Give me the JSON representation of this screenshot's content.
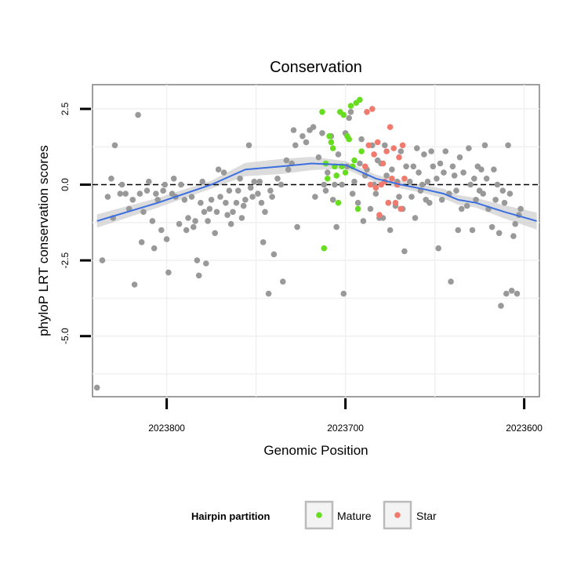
{
  "chart_data": {
    "type": "scatter",
    "title": "Conservation",
    "xlabel": "Genomic Position",
    "ylabel": "phyloP LRT conservation scores",
    "x_reversed": true,
    "xlim": [
      2023841.5,
      2023591.5
    ],
    "ylim": [
      -7.0,
      3.3
    ],
    "x_ticks": [
      2023800,
      2023700,
      2023600
    ],
    "x_tick_labels": [
      "2023800",
      "2023700",
      "2023600"
    ],
    "y_ticks": [
      2.5,
      0.0,
      -2.5,
      -5.0
    ],
    "y_tick_labels": [
      "2.5",
      "0.0",
      "-2.5",
      "-5.0"
    ],
    "grid": true,
    "reference_line": {
      "y": 0,
      "style": "dashed"
    },
    "legend": {
      "title": "Hairpin partition",
      "position": "bottom",
      "entries": [
        {
          "label": "Mature",
          "color": "#66dd1e"
        },
        {
          "label": "Star",
          "color": "#f07a6e"
        }
      ]
    },
    "colors": {
      "other": "#999999",
      "trend": "#3b6fe0",
      "band": "#d0d0d0"
    },
    "series": [
      {
        "name": "",
        "group": "other",
        "points": [
          [
            2023839,
            -6.7
          ],
          [
            2023836,
            -2.5
          ],
          [
            2023833,
            -0.4
          ],
          [
            2023831,
            0.2
          ],
          [
            2023830,
            -1.1
          ],
          [
            2023829,
            1.3
          ],
          [
            2023826,
            -0.3
          ],
          [
            2023825,
            0.0
          ],
          [
            2023823,
            -0.3
          ],
          [
            2023821,
            -0.8
          ],
          [
            2023819,
            -0.5
          ],
          [
            2023818,
            -3.3
          ],
          [
            2023816,
            2.3
          ],
          [
            2023815,
            -0.3
          ],
          [
            2023814,
            -1.9
          ],
          [
            2023813,
            -0.9
          ],
          [
            2023811,
            -0.2
          ],
          [
            2023810,
            0.1
          ],
          [
            2023808,
            -1.2
          ],
          [
            2023807,
            -2.1
          ],
          [
            2023806,
            -0.3
          ],
          [
            2023805,
            -0.5
          ],
          [
            2023803,
            -1.5
          ],
          [
            2023802,
            -0.2
          ],
          [
            2023801,
            0.0
          ],
          [
            2023800,
            -1.8
          ],
          [
            2023799,
            -2.9
          ],
          [
            2023797,
            -0.3
          ],
          [
            2023796,
            0.2
          ],
          [
            2023795,
            -0.4
          ],
          [
            2023793,
            -1.3
          ],
          [
            2023792,
            0.0
          ],
          [
            2023790,
            -0.5
          ],
          [
            2023789,
            -1.5
          ],
          [
            2023788,
            -1.1
          ],
          [
            2023786,
            -0.4
          ],
          [
            2023785,
            -1.4
          ],
          [
            2023784,
            -1.2
          ],
          [
            2023783,
            -2.5
          ],
          [
            2023782,
            -3.0
          ],
          [
            2023781,
            -0.6
          ],
          [
            2023780,
            0.1
          ],
          [
            2023779,
            -0.9
          ],
          [
            2023778,
            -2.6
          ],
          [
            2023777,
            -1.2
          ],
          [
            2023776,
            -0.8
          ],
          [
            2023775,
            -0.5
          ],
          [
            2023773,
            -1.6
          ],
          [
            2023772,
            -0.9
          ],
          [
            2023771,
            0.5
          ],
          [
            2023770,
            -0.4
          ],
          [
            2023768,
            0.4
          ],
          [
            2023767,
            -0.6
          ],
          [
            2023766,
            -1.0
          ],
          [
            2023765,
            -0.2
          ],
          [
            2023764,
            -1.3
          ],
          [
            2023763,
            -0.9
          ],
          [
            2023761,
            -0.6
          ],
          [
            2023760,
            -0.2
          ],
          [
            2023759,
            0.2
          ],
          [
            2023758,
            -1.1
          ],
          [
            2023757,
            -0.7
          ],
          [
            2023756,
            -0.5
          ],
          [
            2023754,
            1.3
          ],
          [
            2023753,
            -0.1
          ],
          [
            2023752,
            -0.4
          ],
          [
            2023751,
            0.1
          ],
          [
            2023749,
            -0.3
          ],
          [
            2023748,
            0.1
          ],
          [
            2023747,
            -0.6
          ],
          [
            2023746,
            -1.9
          ],
          [
            2023745,
            -0.9
          ],
          [
            2023743,
            -3.6
          ],
          [
            2023742,
            -0.2
          ],
          [
            2023741,
            -0.4
          ],
          [
            2023740,
            -2.3
          ],
          [
            2023738,
            0.2
          ],
          [
            2023736,
            0.0
          ],
          [
            2023735,
            -3.2
          ],
          [
            2023733,
            0.8
          ],
          [
            2023732,
            0.5
          ],
          [
            2023730,
            0.7
          ],
          [
            2023729,
            1.8
          ],
          [
            2023728,
            1.3
          ],
          [
            2023727,
            -1.4
          ],
          [
            2023724,
            1.6
          ],
          [
            2023722,
            1.4
          ],
          [
            2023720,
            1.8
          ],
          [
            2023718,
            1.9
          ],
          [
            2023717,
            -0.4
          ],
          [
            2023715,
            0.9
          ],
          [
            2023713,
            1.7
          ],
          [
            2023712,
            0.0
          ],
          [
            2023711,
            -0.2
          ],
          [
            2023710,
            0.4
          ],
          [
            2023708,
            1.6
          ],
          [
            2023707,
            -0.5
          ],
          [
            2023706,
            0.0
          ],
          [
            2023705,
            -1.4
          ],
          [
            2023704,
            1.0
          ],
          [
            2023702,
            0.0
          ],
          [
            2023701,
            -3.6
          ],
          [
            2023700,
            1.7
          ],
          [
            2023699,
            0.6
          ],
          [
            2023698,
            2.2
          ],
          [
            2023697,
            2.4
          ],
          [
            2023696,
            -0.3
          ],
          [
            2023695,
            0.1
          ],
          [
            2023693,
            -0.6
          ],
          [
            2023692,
            0.7
          ],
          [
            2023691,
            1.5
          ],
          [
            2023690,
            -1.2
          ],
          [
            2023689,
            0.3
          ],
          [
            2023688,
            0.5
          ],
          [
            2023686,
            -0.8
          ],
          [
            2023685,
            1.3
          ],
          [
            2023684,
            0.0
          ],
          [
            2023683,
            -0.3
          ],
          [
            2023682,
            0.8
          ],
          [
            2023681,
            -1.1
          ],
          [
            2023680,
            0.7
          ],
          [
            2023679,
            -1.1
          ],
          [
            2023678,
            1.3
          ],
          [
            2023677,
            0.3
          ],
          [
            2023676,
            -0.6
          ],
          [
            2023675,
            -1.5
          ],
          [
            2023674,
            0.5
          ],
          [
            2023672,
            -0.7
          ],
          [
            2023671,
            0.1
          ],
          [
            2023670,
            -0.4
          ],
          [
            2023669,
            1.1
          ],
          [
            2023668,
            -0.8
          ],
          [
            2023667,
            -2.2
          ],
          [
            2023666,
            0.6
          ],
          [
            2023664,
            0.1
          ],
          [
            2023663,
            -0.4
          ],
          [
            2023662,
            0.6
          ],
          [
            2023661,
            -1.1
          ],
          [
            2023660,
            1.2
          ],
          [
            2023659,
            0.4
          ],
          [
            2023658,
            -0.2
          ],
          [
            2023657,
            0.0
          ],
          [
            2023656,
            1.0
          ],
          [
            2023655,
            -0.5
          ],
          [
            2023654,
            0.1
          ],
          [
            2023653,
            -0.6
          ],
          [
            2023652,
            1.1
          ],
          [
            2023651,
            0.6
          ],
          [
            2023649,
            0.2
          ],
          [
            2023648,
            -2.1
          ],
          [
            2023647,
            0.7
          ],
          [
            2023646,
            -0.5
          ],
          [
            2023645,
            0.4
          ],
          [
            2023644,
            1.1
          ],
          [
            2023642,
            -0.3
          ],
          [
            2023641,
            -3.2
          ],
          [
            2023640,
            0.6
          ],
          [
            2023639,
            0.3
          ],
          [
            2023638,
            -0.2
          ],
          [
            2023637,
            -1.5
          ],
          [
            2023636,
            0.9
          ],
          [
            2023635,
            -0.8
          ],
          [
            2023634,
            0.4
          ],
          [
            2023632,
            -0.7
          ],
          [
            2023631,
            1.2
          ],
          [
            2023630,
            0.0
          ],
          [
            2023629,
            -1.5
          ],
          [
            2023628,
            0.2
          ],
          [
            2023627,
            -0.5
          ],
          [
            2023626,
            0.6
          ],
          [
            2023625,
            -0.2
          ],
          [
            2023624,
            0.5
          ],
          [
            2023623,
            -0.3
          ],
          [
            2023622,
            1.3
          ],
          [
            2023621,
            0.2
          ],
          [
            2023620,
            -0.8
          ],
          [
            2023618,
            -1.4
          ],
          [
            2023617,
            0.5
          ],
          [
            2023616,
            -0.5
          ],
          [
            2023615,
            0.0
          ],
          [
            2023614,
            -1.6
          ],
          [
            2023613,
            -4.0
          ],
          [
            2023612,
            -0.2
          ],
          [
            2023611,
            -0.6
          ],
          [
            2023610,
            -3.6
          ],
          [
            2023609,
            1.3
          ],
          [
            2023608,
            -0.3
          ],
          [
            2023607,
            -3.5
          ],
          [
            2023606,
            -1.7
          ],
          [
            2023605,
            -1.3
          ],
          [
            2023604,
            -3.6
          ],
          [
            2023603,
            -1.0
          ],
          [
            2023602,
            -0.8
          ]
        ]
      },
      {
        "name": "Mature",
        "group": "Mature",
        "points": [
          [
            2023713,
            2.4
          ],
          [
            2023712,
            -2.1
          ],
          [
            2023711,
            0.7
          ],
          [
            2023710,
            0.2
          ],
          [
            2023709,
            1.6
          ],
          [
            2023708,
            1.4
          ],
          [
            2023707,
            1.2
          ],
          [
            2023706,
            0.6
          ],
          [
            2023705,
            0.3
          ],
          [
            2023704,
            -0.6
          ],
          [
            2023703,
            2.4
          ],
          [
            2023702,
            0.6
          ],
          [
            2023701,
            2.3
          ],
          [
            2023700,
            0.4
          ],
          [
            2023699,
            1.6
          ],
          [
            2023698,
            1.5
          ],
          [
            2023697,
            2.6
          ],
          [
            2023696,
            0.6
          ],
          [
            2023695,
            0.8
          ],
          [
            2023694,
            2.7
          ],
          [
            2023693,
            -0.8
          ],
          [
            2023692,
            2.8
          ],
          [
            2023691,
            1.1
          ]
        ]
      },
      {
        "name": "Star",
        "group": "Star",
        "points": [
          [
            2023689,
            0.6
          ],
          [
            2023688,
            2.4
          ],
          [
            2023687,
            1.3
          ],
          [
            2023686,
            0.0
          ],
          [
            2023685,
            2.5
          ],
          [
            2023684,
            1.0
          ],
          [
            2023683,
            -0.1
          ],
          [
            2023682,
            1.4
          ],
          [
            2023681,
            -1.0
          ],
          [
            2023680,
            0.0
          ],
          [
            2023679,
            0.7
          ],
          [
            2023678,
            0.1
          ],
          [
            2023677,
            1.1
          ],
          [
            2023676,
            -0.6
          ],
          [
            2023675,
            1.9
          ],
          [
            2023674,
            0.2
          ],
          [
            2023673,
            1.2
          ],
          [
            2023672,
            -0.6
          ],
          [
            2023671,
            0.0
          ],
          [
            2023670,
            0.9
          ],
          [
            2023669,
            -0.8
          ],
          [
            2023668,
            1.3
          ],
          [
            2023667,
            0.2
          ]
        ]
      }
    ],
    "trend": {
      "type": "loess",
      "x": [
        2023839,
        2023805,
        2023775,
        2023756,
        2023736,
        2023719,
        2023700,
        2023683,
        2023669,
        2023656,
        2023645,
        2023637,
        2023627,
        2023611,
        2023593
      ],
      "y": [
        -1.2,
        -0.6,
        0.0,
        0.5,
        0.6,
        0.7,
        0.65,
        0.2,
        0.0,
        -0.15,
        -0.3,
        -0.5,
        -0.6,
        -0.9,
        -1.2
      ],
      "band_width": [
        0.22,
        0.16,
        0.13,
        0.22,
        0.25,
        0.22,
        0.13,
        0.13,
        0.13,
        0.13,
        0.16,
        0.16,
        0.16,
        0.22,
        0.28
      ]
    }
  }
}
